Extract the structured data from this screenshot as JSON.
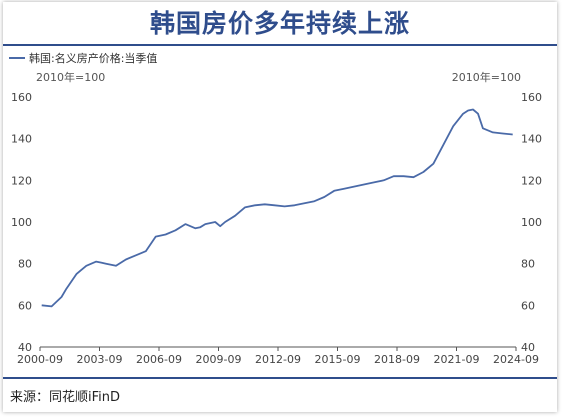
{
  "title": "韩国房价多年持续上涨",
  "source": "来源：同花顺iFinD",
  "chart_data": {
    "type": "line",
    "legend_position": "top-left",
    "grid": false,
    "left_unit": "2010年=100",
    "right_unit": "2010年=100",
    "ylim": [
      40,
      160
    ],
    "y_ticks": [
      "40",
      "60",
      "80",
      "100",
      "120",
      "140",
      "160"
    ],
    "y_tick_values": [
      40,
      60,
      80,
      100,
      120,
      140,
      160
    ],
    "xlim": [
      2000.6667,
      2024.6667
    ],
    "x_ticks": [
      "2000-09",
      "2003-09",
      "2006-09",
      "2009-09",
      "2012-09",
      "2015-09",
      "2018-09",
      "2021-09",
      "2024-09"
    ],
    "x_tick_values": [
      2000.6667,
      2003.6667,
      2006.6667,
      2009.6667,
      2012.6667,
      2015.6667,
      2018.6667,
      2021.6667,
      2024.6667
    ],
    "series": [
      {
        "name": "韩国:名义房产价格:当季值",
        "color": "#4a6aa8",
        "x": [
          2000.75,
          2001.25,
          2001.75,
          2002.0,
          2002.5,
          2002.75,
          2003.0,
          2003.5,
          2003.75,
          2004.0,
          2004.5,
          2005.0,
          2005.5,
          2006.0,
          2006.5,
          2007.0,
          2007.5,
          2008.0,
          2008.5,
          2008.75,
          2009.0,
          2009.5,
          2009.75,
          2010.0,
          2010.5,
          2011.0,
          2011.5,
          2012.0,
          2012.5,
          2013.0,
          2013.5,
          2014.0,
          2014.5,
          2015.0,
          2015.5,
          2016.0,
          2016.5,
          2017.0,
          2017.5,
          2018.0,
          2018.5,
          2019.0,
          2019.5,
          2020.0,
          2020.5,
          2021.0,
          2021.5,
          2022.0,
          2022.25,
          2022.5,
          2022.75,
          2023.0,
          2023.5,
          2024.0,
          2024.5
        ],
        "y": [
          60,
          59.5,
          64,
          68,
          75,
          77,
          79,
          81,
          80.5,
          80,
          79,
          82,
          84,
          86,
          93,
          94,
          96,
          99,
          97,
          97.5,
          99,
          100,
          98,
          100,
          103,
          107,
          108,
          108.5,
          108,
          107.5,
          108,
          109,
          110,
          112,
          115,
          116,
          117,
          118,
          119,
          120,
          122,
          122,
          121.5,
          124,
          128,
          137,
          146,
          152,
          153.5,
          154,
          152,
          145,
          143,
          142.5,
          142
        ]
      }
    ]
  }
}
